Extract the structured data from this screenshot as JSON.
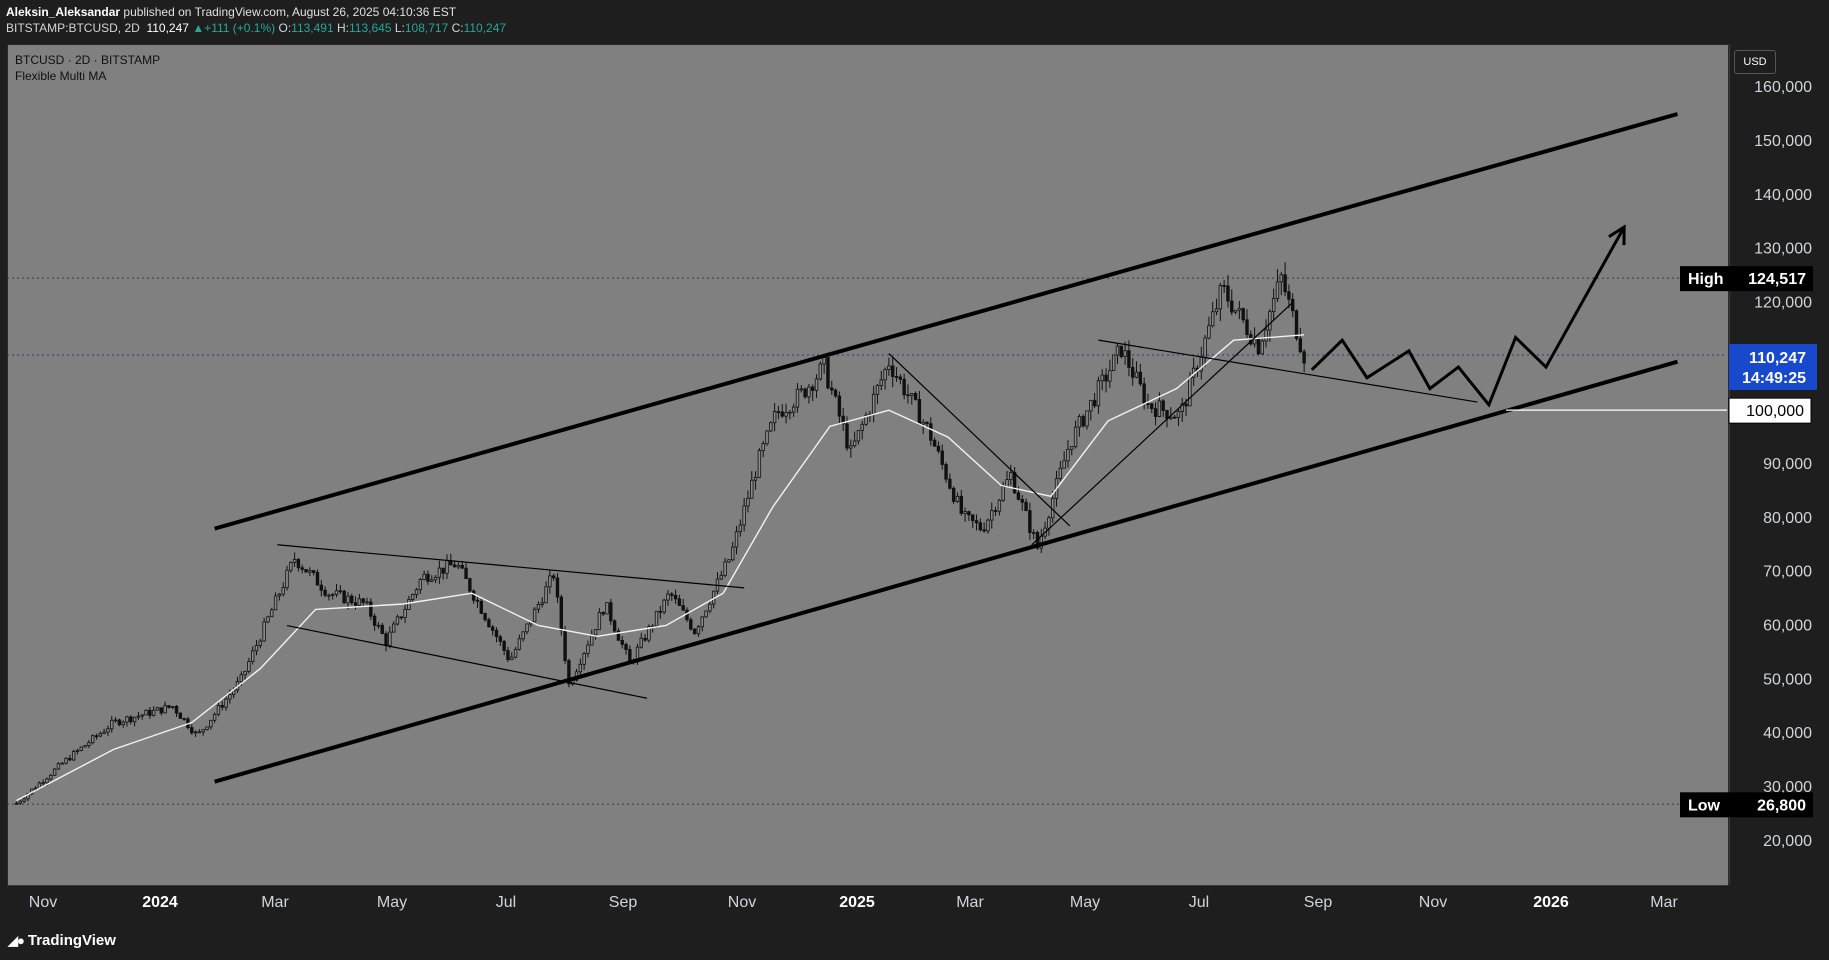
{
  "header": {
    "author": "Aleksin_Aleksandar",
    "published": " published on TradingView.com, August 26, 2025 04:10:36 EST",
    "symbol": "BITSTAMP:BTCUSD, 2D",
    "last": "110,247",
    "change_arrow": "▲",
    "change": "+111 (+0.1%)",
    "o_label": "O:",
    "o_value": "113,491",
    "h_label": "H:",
    "h_value": "113,645",
    "l_label": "L:",
    "l_value": "108,717",
    "c_label": "C:",
    "c_value": "110,247"
  },
  "legend": {
    "title": "BTCUSD · 2D · BITSTAMP",
    "indicator": "Flexible Multi MA"
  },
  "currency_button": "USD",
  "logo": {
    "text": "TradingView",
    "icon": "tradingview-logo-icon"
  },
  "colors": {
    "chart_bg": "#808080",
    "panel_bg": "#1e1e1e",
    "candle": "#101010",
    "ma_line": "#ffffff",
    "price_label_bg": "#1848cc",
    "up_text": "#26a69a"
  },
  "chart_data": {
    "type": "candlestick",
    "symbol": "BTCUSD",
    "timeframe": "2D",
    "exchange": "BITSTAMP",
    "ylim": [
      12000,
      168000
    ],
    "y_ticks": [
      "160,000",
      "150,000",
      "140,000",
      "130,000",
      "120,000",
      "100,000",
      "90,000",
      "80,000",
      "70,000",
      "60,000",
      "50,000",
      "40,000",
      "30,000",
      "20,000"
    ],
    "x_ticks": [
      "Nov",
      "2024",
      "Mar",
      "May",
      "Jul",
      "Sep",
      "Nov",
      "2025",
      "Mar",
      "May",
      "Jul",
      "Sep",
      "Nov",
      "2026",
      "Mar"
    ],
    "x_ticks_bold": [
      "2024",
      "2025",
      "2026"
    ],
    "price_path": [
      [
        "2023-10-20",
        27000
      ],
      [
        "2023-11-15",
        35000
      ],
      [
        "2023-12-10",
        42000
      ],
      [
        "2024-01-10",
        45000
      ],
      [
        "2024-01-23",
        39500
      ],
      [
        "2024-02-15",
        50000
      ],
      [
        "2024-03-14",
        72500
      ],
      [
        "2024-04-01",
        66000
      ],
      [
        "2024-04-20",
        64000
      ],
      [
        "2024-05-01",
        57000
      ],
      [
        "2024-05-20",
        69000
      ],
      [
        "2024-06-07",
        71500
      ],
      [
        "2024-07-05",
        53500
      ],
      [
        "2024-07-28",
        69500
      ],
      [
        "2024-08-05",
        49000
      ],
      [
        "2024-08-24",
        64000
      ],
      [
        "2024-09-06",
        53000
      ],
      [
        "2024-09-27",
        66000
      ],
      [
        "2024-10-10",
        59000
      ],
      [
        "2024-10-29",
        73000
      ],
      [
        "2024-11-12",
        90000
      ],
      [
        "2024-11-22",
        99500
      ],
      [
        "2024-12-05",
        103000
      ],
      [
        "2024-12-17",
        108000
      ],
      [
        "2024-12-31",
        92000
      ],
      [
        "2025-01-20",
        109000
      ],
      [
        "2025-02-10",
        96000
      ],
      [
        "2025-02-28",
        80000
      ],
      [
        "2025-03-10",
        78000
      ],
      [
        "2025-03-25",
        88000
      ],
      [
        "2025-04-08",
        74500
      ],
      [
        "2025-04-25",
        94000
      ],
      [
        "2025-05-22",
        111500
      ],
      [
        "2025-06-05",
        101000
      ],
      [
        "2025-06-22",
        99000
      ],
      [
        "2025-07-14",
        122500
      ],
      [
        "2025-08-02",
        112000
      ],
      [
        "2025-08-14",
        124500
      ],
      [
        "2025-08-26",
        110247
      ]
    ],
    "ma_path": [
      [
        "2023-10-20",
        27500
      ],
      [
        "2023-12-10",
        37000
      ],
      [
        "2024-01-20",
        42000
      ],
      [
        "2024-02-25",
        52000
      ],
      [
        "2024-03-25",
        63000
      ],
      [
        "2024-05-10",
        64000
      ],
      [
        "2024-06-15",
        66000
      ],
      [
        "2024-07-20",
        60000
      ],
      [
        "2024-08-20",
        58000
      ],
      [
        "2024-09-25",
        60000
      ],
      [
        "2024-10-25",
        66000
      ],
      [
        "2024-11-20",
        82000
      ],
      [
        "2024-12-20",
        97000
      ],
      [
        "2025-01-20",
        100000
      ],
      [
        "2025-02-20",
        95000
      ],
      [
        "2025-03-20",
        86000
      ],
      [
        "2025-04-15",
        84000
      ],
      [
        "2025-05-15",
        98000
      ],
      [
        "2025-06-20",
        104000
      ],
      [
        "2025-07-20",
        113000
      ],
      [
        "2025-08-26",
        114000
      ]
    ],
    "high": {
      "label": "High",
      "value": "124,517"
    },
    "low": {
      "label": "Low",
      "value": "26,800"
    },
    "last_price": {
      "value": "110,247",
      "countdown": "14:49:25"
    },
    "level_label": "100,000",
    "annotations": {
      "channel_upper": [
        [
          "2024-02-01",
          78000
        ],
        [
          "2026-03-10",
          155000
        ]
      ],
      "channel_lower": [
        [
          "2024-02-01",
          31000
        ],
        [
          "2026-03-10",
          109000
        ]
      ],
      "triangle_top": [
        [
          "2024-03-05",
          75000
        ],
        [
          "2024-11-05",
          67000
        ]
      ],
      "triangle_bottom": [
        [
          "2024-03-10",
          60000
        ],
        [
          "2024-09-15",
          46500
        ]
      ],
      "downtrend_line": [
        [
          "2025-01-20",
          110500
        ],
        [
          "2025-04-25",
          78500
        ]
      ],
      "uptrend_line": [
        [
          "2025-04-05",
          75000
        ],
        [
          "2025-08-20",
          120000
        ]
      ],
      "flag_line": [
        [
          "2025-05-10",
          113000
        ],
        [
          "2025-11-25",
          101500
        ]
      ],
      "projection_path": [
        [
          "2025-08-30",
          107500
        ],
        [
          "2025-09-15",
          113000
        ],
        [
          "2025-09-28",
          106000
        ],
        [
          "2025-10-20",
          111000
        ],
        [
          "2025-10-31",
          104000
        ],
        [
          "2025-11-15",
          108000
        ],
        [
          "2025-12-01",
          101000
        ],
        [
          "2025-12-15",
          113500
        ],
        [
          "2025-12-31",
          108000
        ],
        [
          "2026-02-10",
          134000
        ]
      ]
    }
  }
}
